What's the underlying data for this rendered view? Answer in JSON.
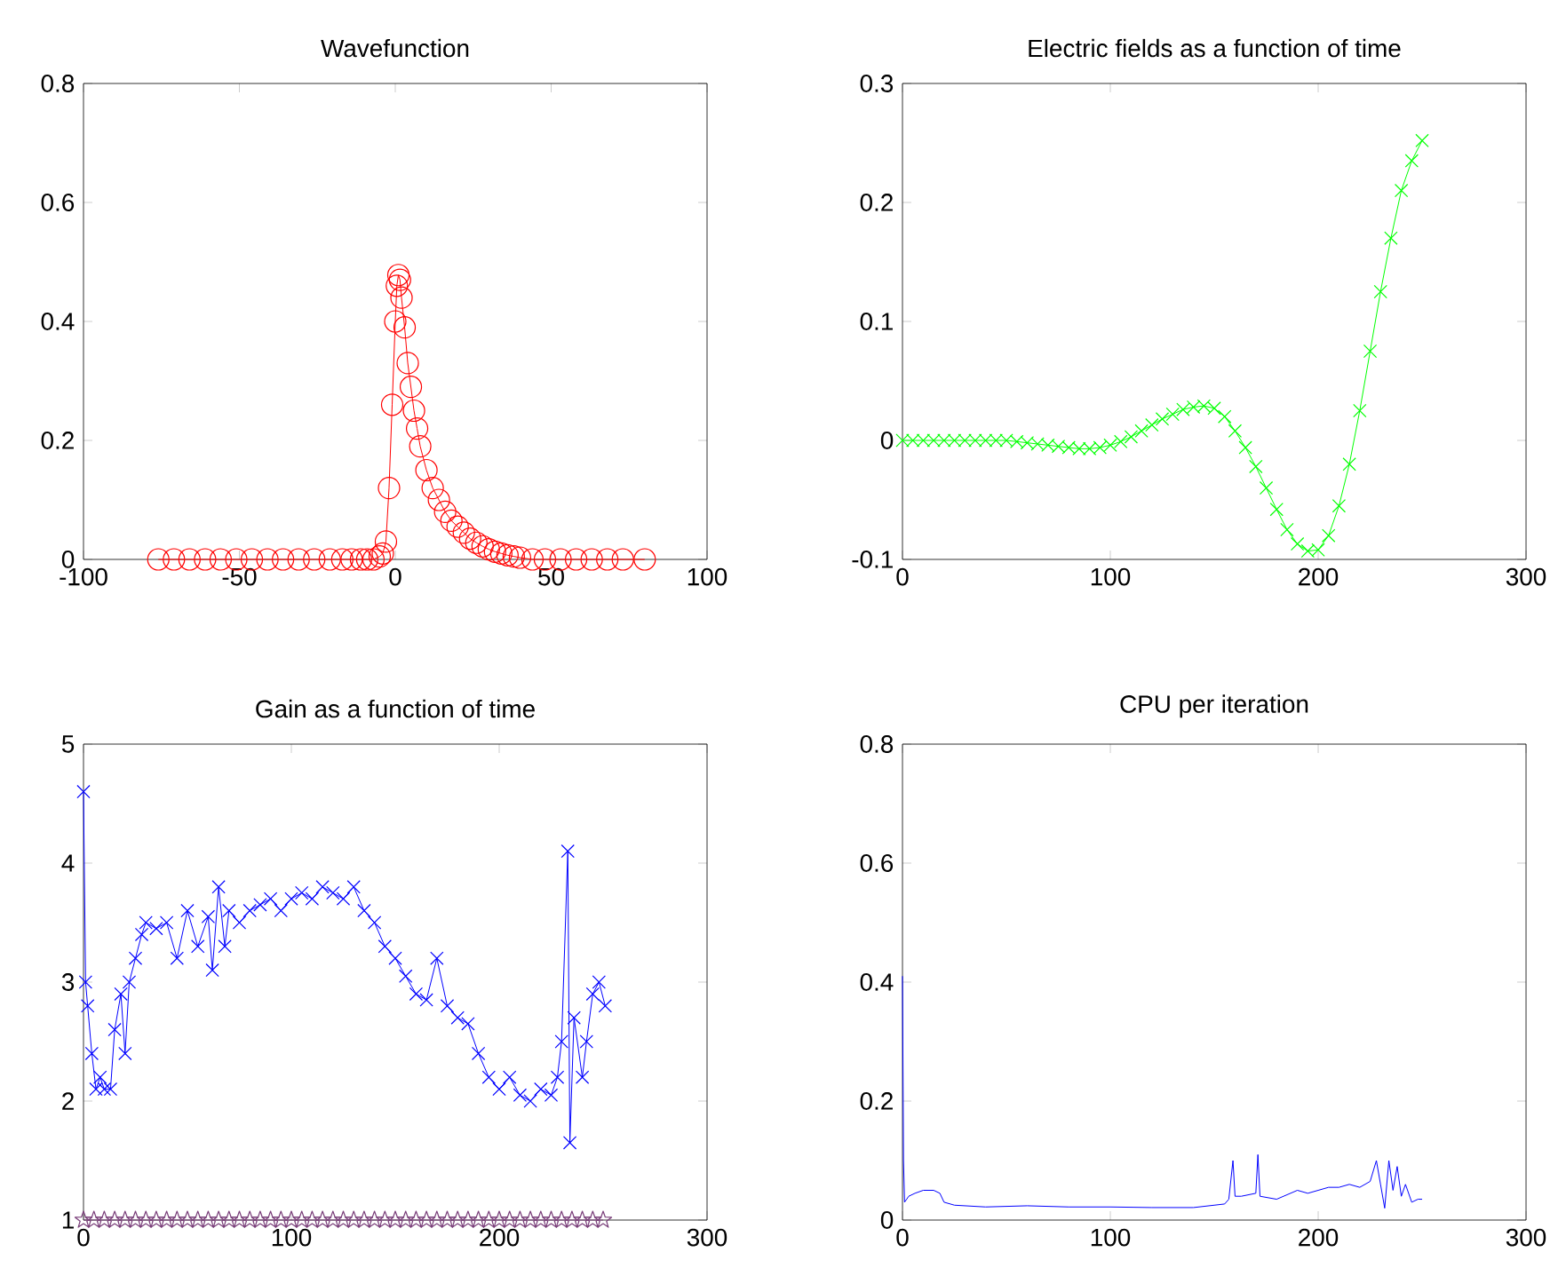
{
  "chart_data": [
    {
      "type": "line",
      "title": "Wavefunction",
      "marker": "circle",
      "color": "#ff0000",
      "x": [
        -76,
        -71,
        -66,
        -61,
        -56,
        -51,
        -46,
        -41,
        -36,
        -31,
        -26,
        -21,
        -17,
        -14,
        -11,
        -9,
        -7,
        -5,
        -4,
        -3,
        -2,
        -1,
        0,
        0.5,
        1,
        1.5,
        2,
        3,
        4,
        5,
        6,
        7,
        8,
        10,
        12,
        14,
        16,
        18,
        20,
        22,
        24,
        26,
        28,
        30,
        32,
        34,
        36,
        38,
        40,
        44,
        48,
        53,
        58,
        63,
        68,
        73,
        80
      ],
      "values": [
        0,
        0,
        0,
        0,
        0,
        0,
        0,
        0,
        0,
        0,
        0,
        0,
        0,
        0,
        0,
        0,
        0,
        0.005,
        0.01,
        0.03,
        0.12,
        0.26,
        0.4,
        0.46,
        0.478,
        0.47,
        0.44,
        0.39,
        0.33,
        0.29,
        0.25,
        0.22,
        0.19,
        0.15,
        0.12,
        0.1,
        0.08,
        0.065,
        0.055,
        0.045,
        0.035,
        0.028,
        0.022,
        0.017,
        0.013,
        0.01,
        0.007,
        0.005,
        0.003,
        0,
        0,
        0,
        0,
        0,
        0,
        0,
        0
      ],
      "xlim": [
        -100,
        100
      ],
      "ylim": [
        0,
        0.8
      ],
      "xticks": [
        -100,
        -50,
        0,
        50,
        100
      ],
      "yticks": [
        0,
        0.2,
        0.4,
        0.6,
        0.8
      ]
    },
    {
      "type": "line",
      "title": "Electric fields as a function of time",
      "marker": "cross",
      "color": "#00ff00",
      "x": [
        0,
        5,
        10,
        15,
        20,
        25,
        30,
        35,
        40,
        45,
        50,
        55,
        60,
        65,
        70,
        75,
        80,
        85,
        90,
        95,
        100,
        105,
        110,
        115,
        120,
        125,
        130,
        135,
        140,
        145,
        150,
        155,
        160,
        165,
        170,
        175,
        180,
        185,
        190,
        195,
        200,
        205,
        210,
        215,
        220,
        225,
        230,
        235,
        240,
        245,
        250
      ],
      "values": [
        0,
        0,
        0,
        0,
        0,
        0,
        0,
        0,
        0,
        0,
        0,
        -0.001,
        -0.002,
        -0.003,
        -0.004,
        -0.005,
        -0.006,
        -0.007,
        -0.007,
        -0.006,
        -0.004,
        -0.001,
        0.003,
        0.008,
        0.013,
        0.018,
        0.022,
        0.026,
        0.028,
        0.029,
        0.027,
        0.02,
        0.008,
        -0.006,
        -0.022,
        -0.04,
        -0.058,
        -0.075,
        -0.087,
        -0.093,
        -0.092,
        -0.08,
        -0.055,
        -0.02,
        0.025,
        0.075,
        0.125,
        0.17,
        0.21,
        0.235,
        0.252
      ],
      "xlim": [
        0,
        300
      ],
      "ylim": [
        -0.1,
        0.3
      ],
      "xticks": [
        0,
        100,
        200,
        300
      ],
      "yticks": [
        -0.1,
        0,
        0.1,
        0.2,
        0.3
      ]
    },
    {
      "type": "line",
      "title": "Gain as a function of time",
      "series": [
        {
          "color": "#0000ff",
          "marker": "cross",
          "x": [
            0,
            1,
            2,
            4,
            6,
            8,
            10,
            13,
            15,
            18,
            20,
            22,
            25,
            28,
            30,
            35,
            40,
            45,
            50,
            55,
            60,
            62,
            65,
            68,
            70,
            75,
            80,
            85,
            90,
            95,
            100,
            105,
            110,
            115,
            120,
            125,
            130,
            135,
            140,
            145,
            150,
            155,
            160,
            165,
            170,
            175,
            180,
            185,
            190,
            195,
            200,
            205,
            210,
            215,
            220,
            225,
            228,
            230,
            233,
            234,
            236,
            240,
            242,
            245,
            248,
            251
          ],
          "values": [
            4.6,
            3.0,
            2.8,
            2.4,
            2.1,
            2.2,
            2.1,
            2.1,
            2.6,
            2.9,
            2.4,
            3.0,
            3.2,
            3.4,
            3.5,
            3.45,
            3.5,
            3.2,
            3.6,
            3.3,
            3.55,
            3.1,
            3.8,
            3.3,
            3.6,
            3.5,
            3.6,
            3.65,
            3.7,
            3.6,
            3.7,
            3.75,
            3.7,
            3.8,
            3.75,
            3.7,
            3.8,
            3.6,
            3.5,
            3.3,
            3.2,
            3.05,
            2.9,
            2.85,
            3.2,
            2.8,
            2.7,
            2.65,
            2.4,
            2.2,
            2.1,
            2.2,
            2.05,
            2.0,
            2.1,
            2.05,
            2.2,
            2.5,
            4.1,
            1.65,
            2.7,
            2.2,
            2.5,
            2.9,
            3.0,
            2.8
          ]
        },
        {
          "color": "#7a3f7a",
          "marker": "star",
          "x": [
            0,
            5,
            10,
            15,
            20,
            25,
            30,
            35,
            40,
            45,
            50,
            55,
            60,
            65,
            70,
            75,
            80,
            85,
            90,
            95,
            100,
            105,
            110,
            115,
            120,
            125,
            130,
            135,
            140,
            145,
            150,
            155,
            160,
            165,
            170,
            175,
            180,
            185,
            190,
            195,
            200,
            205,
            210,
            215,
            220,
            225,
            230,
            235,
            240,
            245,
            250
          ],
          "values": [
            1,
            1,
            1,
            1,
            1,
            1,
            1,
            1,
            1,
            1,
            1,
            1,
            1,
            1,
            1,
            1,
            1,
            1,
            1,
            1,
            1,
            1,
            1,
            1,
            1,
            1,
            1,
            1,
            1,
            1,
            1,
            1,
            1,
            1,
            1,
            1,
            1,
            1,
            1,
            1,
            1,
            1,
            1,
            1,
            1,
            1,
            1,
            1,
            1,
            1,
            1
          ]
        }
      ],
      "xlim": [
        0,
        300
      ],
      "ylim": [
        1,
        5
      ],
      "xticks": [
        0,
        100,
        200,
        300
      ],
      "yticks": [
        1,
        2,
        3,
        4,
        5
      ]
    },
    {
      "type": "line",
      "title": "CPU per iteration",
      "color": "#0000ff",
      "x": [
        0,
        0.5,
        1,
        3,
        6,
        10,
        15,
        18,
        20,
        25,
        40,
        60,
        80,
        100,
        120,
        140,
        150,
        155,
        157,
        159,
        160,
        163,
        170,
        171,
        172,
        180,
        190,
        195,
        200,
        205,
        210,
        215,
        220,
        225,
        228,
        230,
        232,
        234,
        236,
        238,
        240,
        242,
        245,
        248,
        250
      ],
      "values": [
        0.41,
        0.1,
        0.03,
        0.04,
        0.045,
        0.05,
        0.05,
        0.045,
        0.03,
        0.025,
        0.022,
        0.024,
        0.022,
        0.022,
        0.021,
        0.021,
        0.025,
        0.027,
        0.035,
        0.1,
        0.04,
        0.04,
        0.045,
        0.11,
        0.04,
        0.035,
        0.05,
        0.045,
        0.05,
        0.055,
        0.055,
        0.06,
        0.055,
        0.065,
        0.1,
        0.06,
        0.02,
        0.1,
        0.05,
        0.09,
        0.04,
        0.06,
        0.03,
        0.035,
        0.035
      ],
      "xlim": [
        0,
        300
      ],
      "ylim": [
        0,
        0.8
      ],
      "xticks": [
        0,
        100,
        200,
        300
      ],
      "yticks": [
        0,
        0.2,
        0.4,
        0.6,
        0.8
      ]
    }
  ]
}
